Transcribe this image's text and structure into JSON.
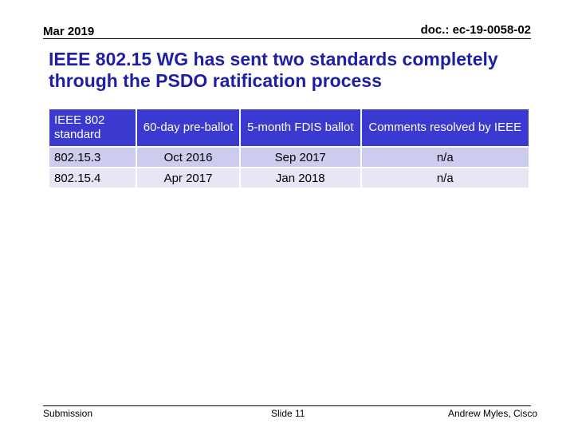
{
  "header": {
    "date": "Mar 2019",
    "doc_id": "doc.: ec-19-0058-02"
  },
  "title": "IEEE 802.15 WG has sent two standards  completely through the PSDO ratification process",
  "table": {
    "headers": [
      "IEEE 802 standard",
      "60-day pre-ballot",
      "5-month FDIS ballot",
      "Comments resolved by IEEE"
    ],
    "rows": [
      [
        "802.15.3",
        "Oct 2016",
        "Sep 2017",
        "n/a"
      ],
      [
        "802.15.4",
        "Apr 2017",
        "Jan 2018",
        "n/a"
      ]
    ]
  },
  "footer": {
    "left": "Submission",
    "center": "Slide 11",
    "right": "Andrew Myles, Cisco"
  },
  "colors": {
    "title": "#1f1fa6",
    "header_bg": "#3a3ad0",
    "row_a": "#ccccee",
    "row_b": "#e6e6f5"
  }
}
